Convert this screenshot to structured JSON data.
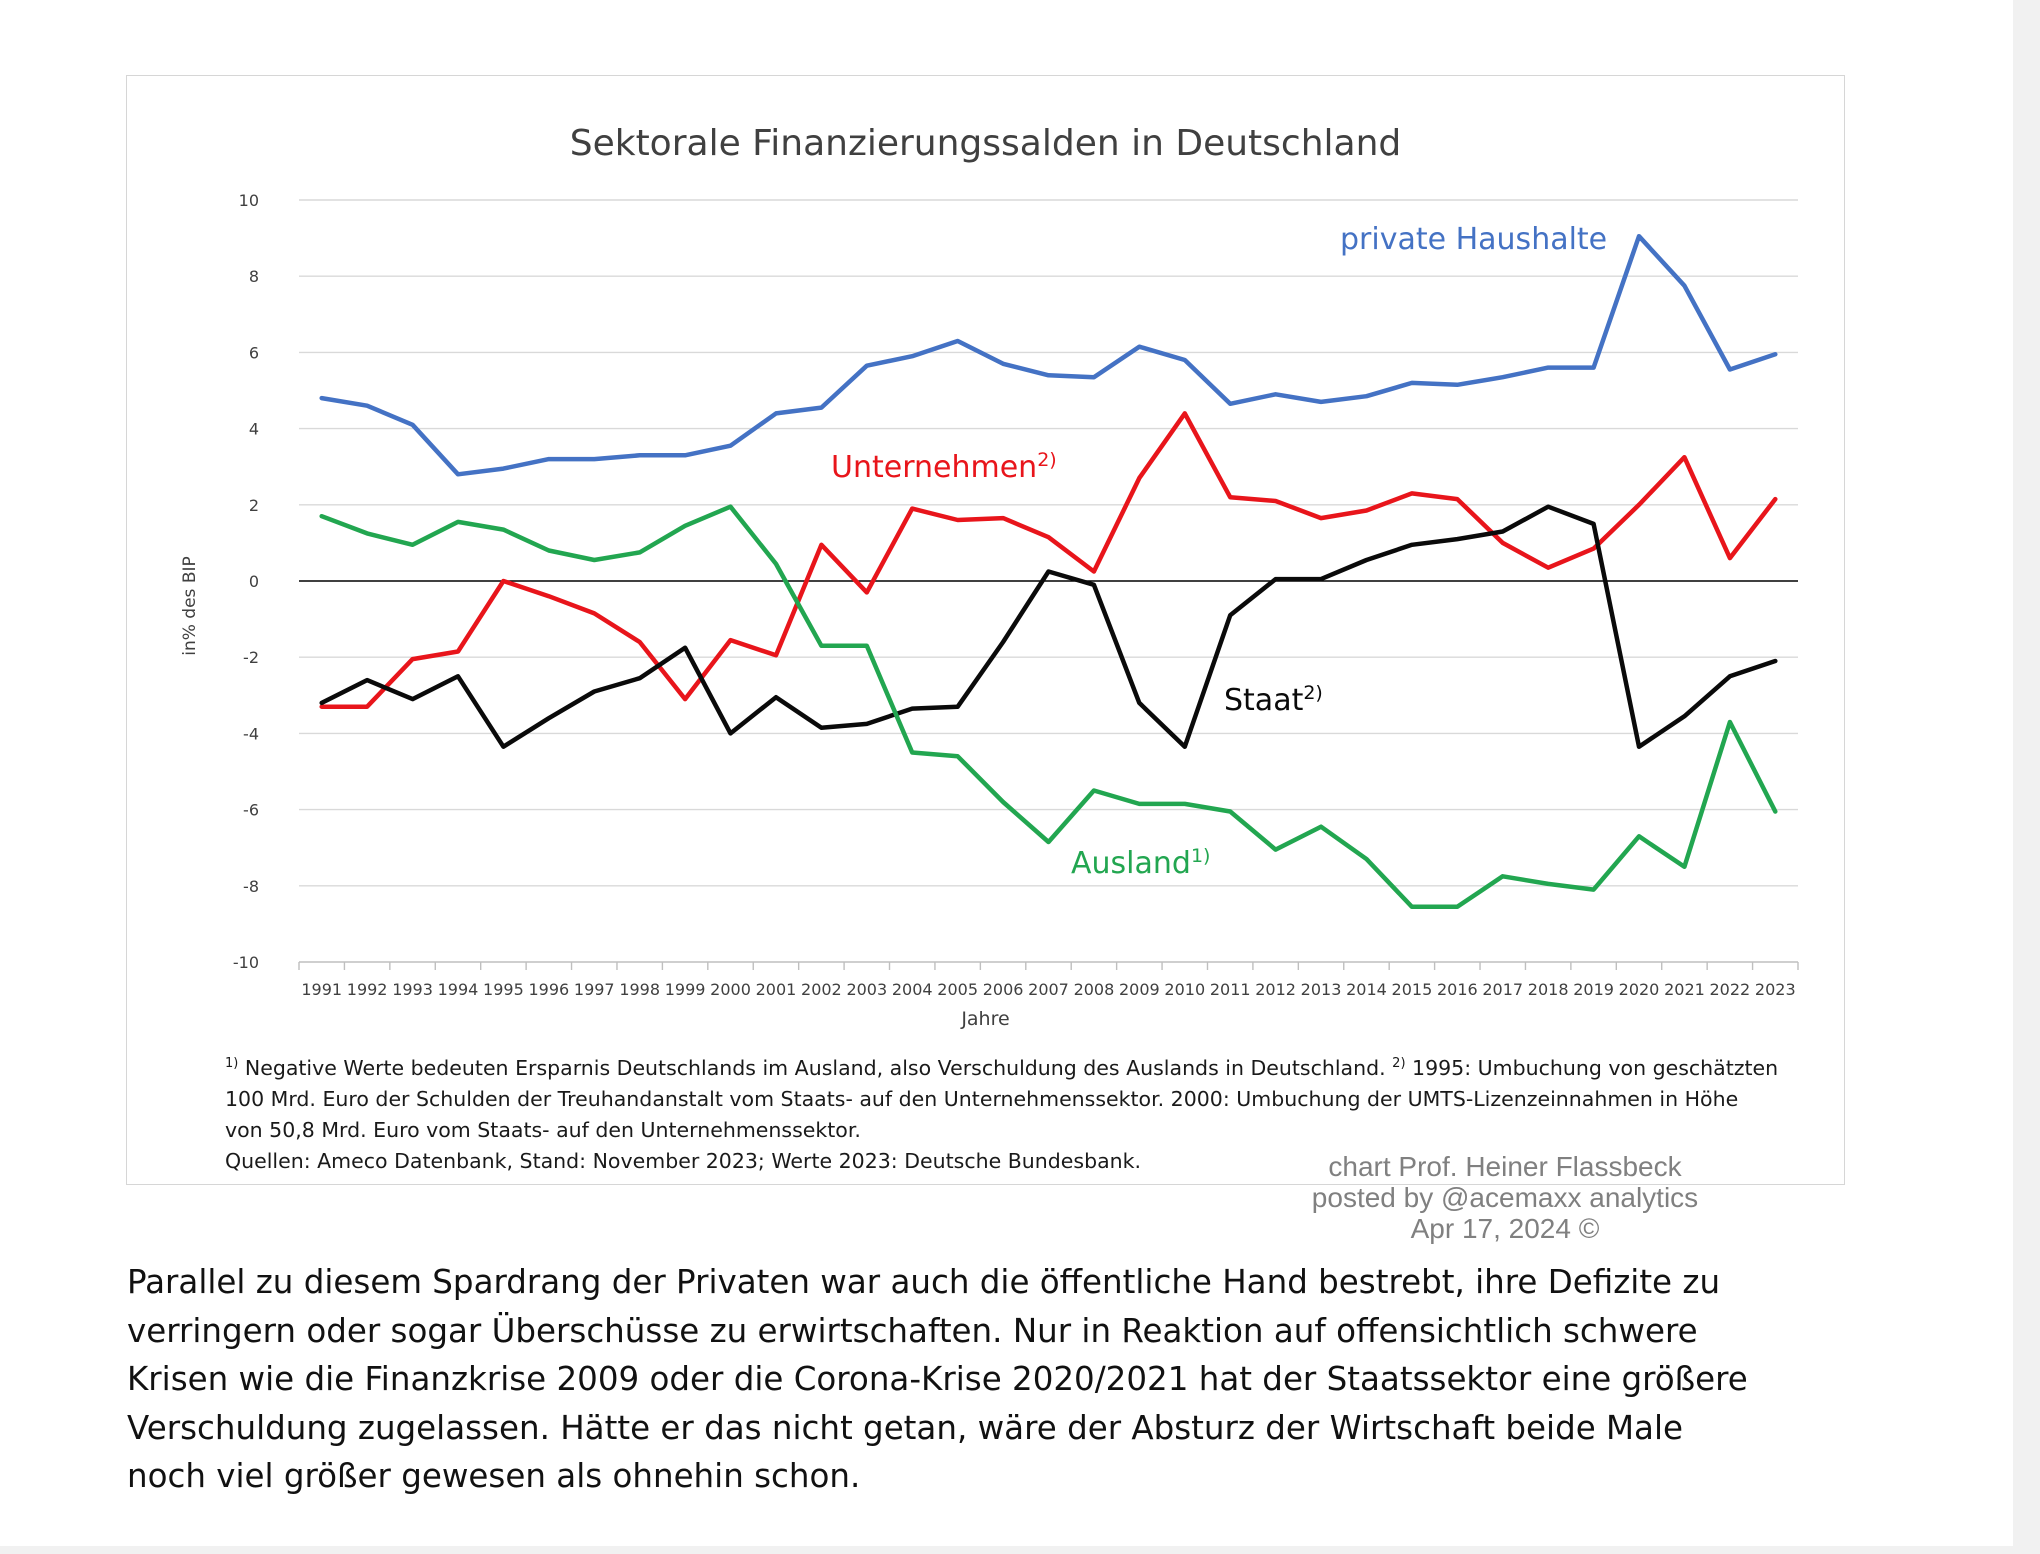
{
  "chart_data": {
    "type": "line",
    "title": "Sektorale Finanzierungssalden in Deutschland",
    "xlabel": "Jahre",
    "ylabel": "in% des BIP",
    "ylim": [
      -10,
      10
    ],
    "yticks": [
      "10",
      "8",
      "6",
      "4",
      "2",
      "0",
      "-2",
      "-4",
      "-6",
      "-8",
      "-10"
    ],
    "grid": true,
    "categories": [
      "1991",
      "1992",
      "1993",
      "1994",
      "1995",
      "1996",
      "1997",
      "1998",
      "1999",
      "2000",
      "2001",
      "2002",
      "2003",
      "2004",
      "2005",
      "2006",
      "2007",
      "2008",
      "2009",
      "2010",
      "2011",
      "2012",
      "2013",
      "2014",
      "2015",
      "2016",
      "2017",
      "2018",
      "2019",
      "2020",
      "2021",
      "2022",
      "2023"
    ],
    "series": [
      {
        "name": "private  Haushalte",
        "color": "#4472c4",
        "values": [
          4.8,
          4.6,
          4.1,
          2.8,
          2.95,
          3.2,
          3.2,
          3.3,
          3.3,
          3.55,
          4.4,
          4.55,
          5.65,
          5.9,
          6.3,
          5.7,
          5.4,
          5.35,
          6.15,
          5.8,
          4.65,
          4.9,
          4.7,
          4.85,
          5.2,
          5.15,
          5.35,
          5.6,
          5.6,
          9.05,
          7.75,
          5.55,
          5.95
        ]
      },
      {
        "name": "Unternehmen",
        "note": "2)",
        "color": "#e8151b",
        "values": [
          -3.3,
          -3.3,
          -2.05,
          -1.85,
          0.0,
          -0.4,
          -0.85,
          -1.6,
          -3.1,
          -1.55,
          -1.95,
          0.95,
          -0.3,
          1.9,
          1.6,
          1.65,
          1.15,
          0.25,
          2.7,
          4.4,
          2.2,
          2.1,
          1.65,
          1.85,
          2.3,
          2.15,
          1.0,
          0.35,
          0.85,
          2.0,
          3.25,
          0.6,
          2.15
        ]
      },
      {
        "name": "Staat",
        "note": "2)",
        "color": "#0a0a0a",
        "values": [
          -3.2,
          -2.6,
          -3.1,
          -2.5,
          -4.35,
          -3.6,
          -2.9,
          -2.55,
          -1.75,
          -4.0,
          -3.05,
          -3.85,
          -3.75,
          -3.35,
          -3.3,
          -1.6,
          0.25,
          -0.1,
          -3.2,
          -4.35,
          -0.9,
          0.05,
          0.05,
          0.55,
          0.95,
          1.1,
          1.3,
          1.95,
          1.5,
          -4.35,
          -3.55,
          -2.5,
          -2.1
        ]
      },
      {
        "name": "Ausland",
        "note": "1)",
        "color": "#22a650",
        "values": [
          1.7,
          1.25,
          0.95,
          1.55,
          1.35,
          0.8,
          0.55,
          0.75,
          1.45,
          1.95,
          0.45,
          -1.7,
          -1.7,
          -4.5,
          -4.6,
          -5.8,
          -6.85,
          -5.5,
          -5.85,
          -5.85,
          -6.05,
          -7.05,
          -6.45,
          -7.3,
          -8.55,
          -8.55,
          -7.75,
          -7.95,
          -8.1,
          -6.7,
          -7.5,
          -3.7,
          -6.05
        ]
      }
    ]
  },
  "footnotes": {
    "line1_mark": "1)",
    "line1_text": "Negative Werte bedeuten Ersparnis Deutschlands im Ausland, also Verschuldung des Auslands in Deutschland.",
    "line1_mark2": "2)",
    "line1_text2": "1995:  Umbuchung von geschätzten",
    "line2": "100  Mrd. Euro der Schulden der Treuhandanstalt vom Staats- auf den Unternehmenssektor. 2000: Umbuchung der UMTS-Lizenzeinnahmen in Höhe",
    "line3": "von 50,8  Mrd. Euro vom Staats- auf den Unternehmenssektor.",
    "line4": "Quellen: Ameco Datenbank, Stand: November 2023; Werte 2023:  Deutsche Bundesbank."
  },
  "credit": {
    "line1": "chart Prof. Heiner Flassbeck",
    "line2": "posted by @acemaxx analytics",
    "line3": "Apr 17, 2024 ©"
  },
  "paragraph": {
    "line1": "Parallel zu diesem Spardrang der Privaten war auch die öffentliche Hand bestrebt, ihre Defizite zu",
    "line2": "verringern oder sogar Überschüsse zu erwirtschaften. Nur in Reaktion auf offensichtlich schwere",
    "line3": "Krisen wie die Finanzkrise 2009 oder die Corona-Krise 2020/2021 hat der Staatssektor eine größere",
    "line4": "Verschuldung zugelassen. Hätte er das nicht getan, wäre der Absturz der Wirtschaft beide Male",
    "line5": "noch viel größer gewesen als ohnehin schon."
  }
}
